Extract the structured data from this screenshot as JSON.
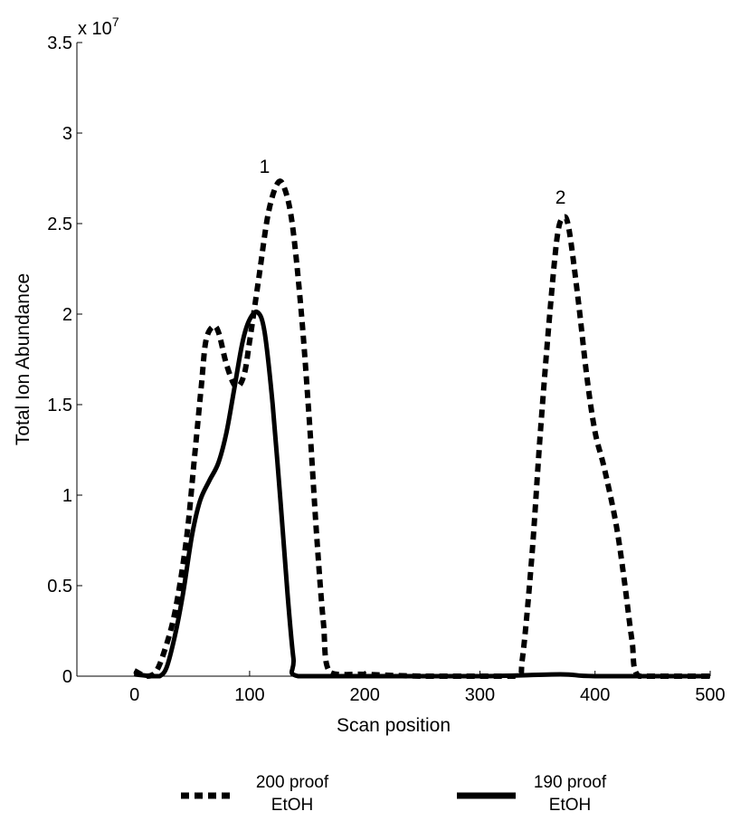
{
  "chart_data": {
    "type": "line",
    "xlabel": "Scan position",
    "ylabel": "Total Ion Abundance",
    "y_multiplier_label": "x 10",
    "y_multiplier_exponent": "7",
    "xlim": [
      -50,
      500
    ],
    "ylim": [
      0,
      3.5
    ],
    "xticks": [
      "0",
      "100",
      "200",
      "300",
      "400",
      "500"
    ],
    "xtick_values": [
      0,
      100,
      200,
      300,
      400,
      500
    ],
    "yticks": [
      "0",
      "0.5",
      "1",
      "1.5",
      "2",
      "2.5",
      "3",
      "3.5"
    ],
    "ytick_values": [
      0,
      0.5,
      1,
      1.5,
      2,
      2.5,
      3,
      3.5
    ],
    "grid": false,
    "legend_position": "bottom",
    "series": [
      {
        "name": "200 proof EtOH",
        "legend_line1": "200 proof",
        "legend_line2": "EtOH",
        "style": "dashed",
        "color": "#000000",
        "points": [
          [
            0,
            0.03
          ],
          [
            10,
            0.0
          ],
          [
            18,
            0.02
          ],
          [
            25,
            0.12
          ],
          [
            35,
            0.35
          ],
          [
            45,
            0.75
          ],
          [
            52,
            1.2
          ],
          [
            58,
            1.6
          ],
          [
            62,
            1.85
          ],
          [
            68,
            1.93
          ],
          [
            73,
            1.9
          ],
          [
            80,
            1.72
          ],
          [
            88,
            1.6
          ],
          [
            95,
            1.66
          ],
          [
            100,
            1.85
          ],
          [
            108,
            2.2
          ],
          [
            116,
            2.55
          ],
          [
            124,
            2.72
          ],
          [
            130,
            2.7
          ],
          [
            137,
            2.5
          ],
          [
            145,
            2.0
          ],
          [
            152,
            1.4
          ],
          [
            158,
            0.8
          ],
          [
            164,
            0.3
          ],
          [
            170,
            0.02
          ],
          [
            200,
            0.01
          ],
          [
            250,
            0.0
          ],
          [
            300,
            0.0
          ],
          [
            332,
            0.0
          ],
          [
            337,
            0.1
          ],
          [
            345,
            0.65
          ],
          [
            352,
            1.3
          ],
          [
            360,
            1.95
          ],
          [
            367,
            2.42
          ],
          [
            372,
            2.53
          ],
          [
            377,
            2.48
          ],
          [
            385,
            2.1
          ],
          [
            393,
            1.65
          ],
          [
            400,
            1.35
          ],
          [
            408,
            1.15
          ],
          [
            418,
            0.85
          ],
          [
            425,
            0.55
          ],
          [
            432,
            0.2
          ],
          [
            438,
            0.0
          ],
          [
            470,
            0.0
          ],
          [
            500,
            0.0
          ]
        ]
      },
      {
        "name": "190 proof EtOH",
        "legend_line1": "190 proof",
        "legend_line2": "EtOH",
        "style": "solid",
        "color": "#000000",
        "points": [
          [
            0,
            0.01
          ],
          [
            15,
            0.0
          ],
          [
            22,
            0.0
          ],
          [
            28,
            0.05
          ],
          [
            35,
            0.22
          ],
          [
            42,
            0.45
          ],
          [
            50,
            0.78
          ],
          [
            57,
            0.97
          ],
          [
            65,
            1.08
          ],
          [
            73,
            1.18
          ],
          [
            80,
            1.35
          ],
          [
            87,
            1.6
          ],
          [
            94,
            1.85
          ],
          [
            100,
            1.97
          ],
          [
            107,
            2.01
          ],
          [
            113,
            1.9
          ],
          [
            120,
            1.5
          ],
          [
            127,
            0.95
          ],
          [
            133,
            0.45
          ],
          [
            138,
            0.1
          ],
          [
            142,
            0.0
          ],
          [
            200,
            0.0
          ],
          [
            300,
            0.0
          ],
          [
            370,
            0.01
          ],
          [
            400,
            0.0
          ],
          [
            500,
            0.0
          ]
        ]
      }
    ],
    "annotations": [
      {
        "text": "1",
        "x": 113,
        "y": 2.78
      },
      {
        "text": "2",
        "x": 370,
        "y": 2.61
      }
    ]
  }
}
